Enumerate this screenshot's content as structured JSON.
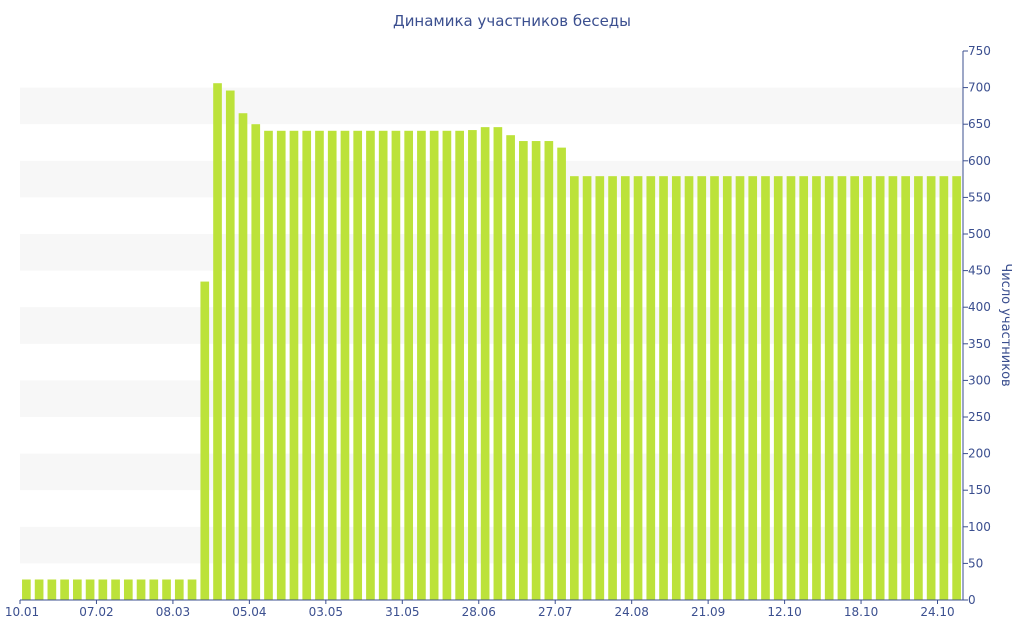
{
  "chart_data": {
    "type": "bar",
    "title": "Динамика участников беседы",
    "xlabel": "",
    "ylabel": "Число участников",
    "ylim": [
      0,
      750
    ],
    "yticks": [
      0,
      50,
      100,
      150,
      200,
      250,
      300,
      350,
      400,
      450,
      500,
      550,
      600,
      650,
      700,
      750
    ],
    "y_axis_side": "right",
    "grid": "alternating horizontal bands",
    "x_tick_labels": [
      "10.01",
      "07.02",
      "08.03",
      "05.04",
      "03.05",
      "31.05",
      "28.06",
      "27.07",
      "24.08",
      "21.09",
      "12.10",
      "18.10",
      "24.10"
    ],
    "x_tick_positions": [
      0,
      6,
      12,
      18,
      24,
      30,
      36,
      42,
      48,
      54,
      60,
      66,
      72
    ],
    "values": [
      28,
      28,
      28,
      28,
      28,
      28,
      28,
      28,
      28,
      28,
      28,
      28,
      28,
      28,
      435,
      706,
      696,
      665,
      650,
      641,
      641,
      641,
      641,
      641,
      641,
      641,
      641,
      641,
      641,
      641,
      641,
      641,
      641,
      641,
      641,
      642,
      646,
      646,
      635,
      627,
      627,
      627,
      618,
      579,
      579,
      579,
      579,
      579,
      579,
      579,
      579,
      579,
      579,
      579,
      579,
      579,
      579,
      579,
      579,
      579,
      579,
      579,
      579,
      579,
      579,
      579,
      579,
      579,
      579,
      579,
      579,
      579,
      579,
      579
    ],
    "bar_color": "#bce23a",
    "band_color": "#f7f7f7",
    "axis_color": "#3b4f8f"
  }
}
